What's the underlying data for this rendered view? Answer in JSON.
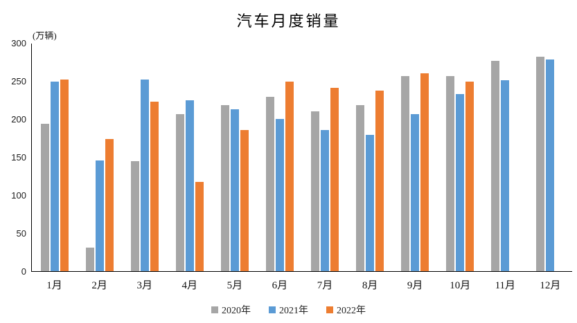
{
  "chart_data": {
    "type": "bar",
    "title": "汽车月度销量",
    "unit_label": "(万辆)",
    "categories": [
      "1月",
      "2月",
      "3月",
      "4月",
      "5月",
      "6月",
      "7月",
      "8月",
      "9月",
      "10月",
      "11月",
      "12月"
    ],
    "series": [
      {
        "name": "2020年",
        "color": "#A6A6A6",
        "values": [
          194,
          31,
          145,
          207,
          219,
          230,
          211,
          219,
          257,
          257,
          277,
          283
        ]
      },
      {
        "name": "2021年",
        "color": "#5B9BD5",
        "values": [
          250,
          146,
          253,
          225,
          213,
          201,
          186,
          180,
          207,
          233,
          252,
          279
        ]
      },
      {
        "name": "2022年",
        "color": "#ED7D31",
        "values": [
          253,
          174,
          223,
          118,
          186,
          250,
          242,
          238,
          261,
          250,
          null,
          null
        ]
      }
    ],
    "ylim": [
      0,
      300
    ],
    "ytick_step": 50,
    "grid": false,
    "legend_position": "bottom",
    "axis_color": "#000000",
    "background_color": "#FFFFFF"
  }
}
